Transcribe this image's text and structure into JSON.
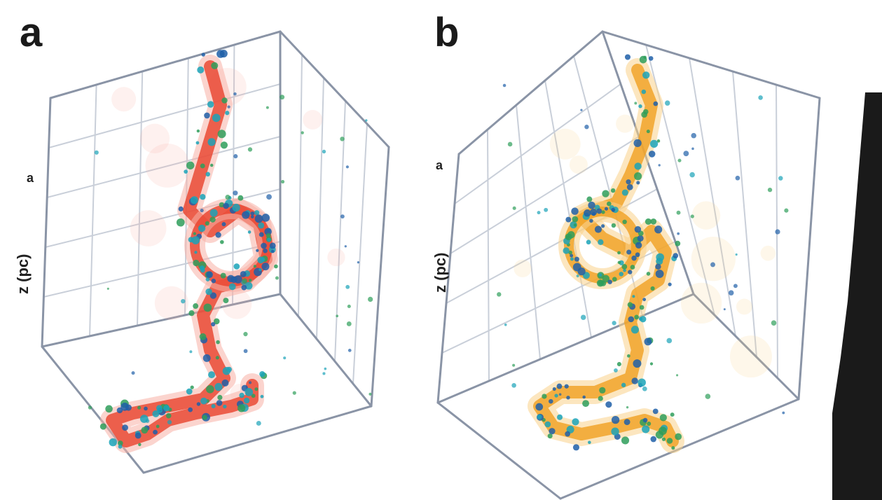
{
  "panels": [
    {
      "id": "a",
      "label": "a",
      "axis_label": "z (pc)",
      "axis_tick": "a",
      "filament_color": "#e8412c",
      "halo_color": "#f7b0a6"
    },
    {
      "id": "b",
      "label": "b",
      "axis_label": "z (pc)",
      "axis_tick": "a",
      "filament_color": "#f0a020",
      "halo_color": "#f9d28a"
    }
  ],
  "colors": {
    "frame": "#8a94a6",
    "grid": "#c9cfd9",
    "point_blue": "#1f5fa8",
    "point_green": "#2e9e5a",
    "point_teal": "#1aa3b8",
    "dark_bar": "#1a1a1a"
  }
}
